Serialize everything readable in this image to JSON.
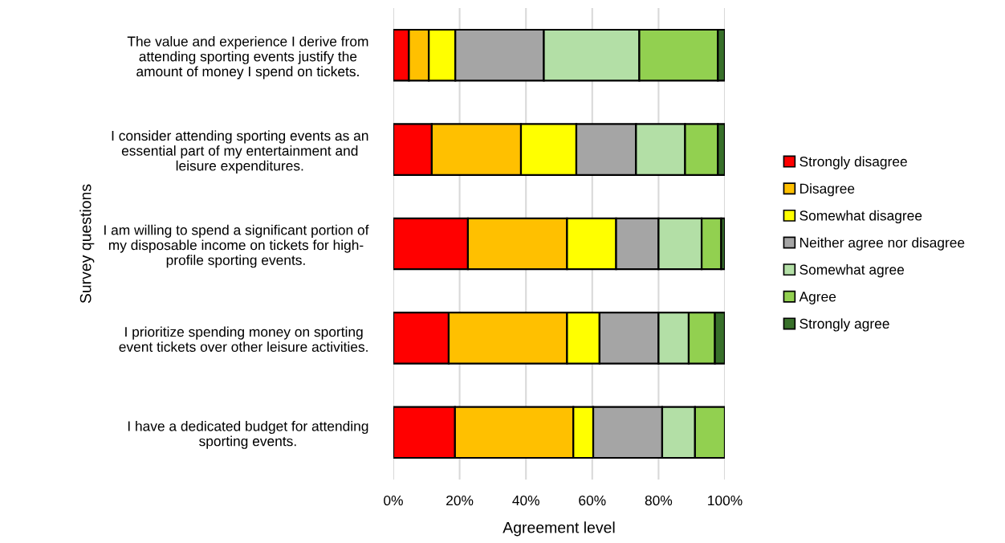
{
  "chart_data": {
    "type": "bar",
    "orientation": "horizontal",
    "stacked": true,
    "xlabel": "Agreement level",
    "ylabel": "Survey questions",
    "categories": [
      "The value and experience I derive from\nattending sporting events justify the\namount of money I spend on tickets.",
      "I consider attending sporting events as an\nessential part of my entertainment and\nleisure expenditures.",
      "I am willing to spend a significant portion of\nmy disposable income on tickets for high-\nprofile sporting events.",
      "I prioritize spending money on sporting\nevent tickets over other leisure activities.",
      "I have a dedicated budget for attending\nsporting events."
    ],
    "series": [
      {
        "name": "Strongly disagree",
        "color": "#ff0000",
        "values": [
          4.7,
          11.6,
          22.5,
          16.7,
          18.6
        ]
      },
      {
        "name": "Disagree",
        "color": "#ffc000",
        "values": [
          6.0,
          26.9,
          29.9,
          35.7,
          35.7
        ]
      },
      {
        "name": "Somewhat disagree",
        "color": "#ffff00",
        "values": [
          8.0,
          16.7,
          14.8,
          9.8,
          6.0
        ]
      },
      {
        "name": "Neither agree nor disagree",
        "color": "#a5a5a5",
        "values": [
          26.7,
          18.0,
          12.8,
          17.8,
          20.8
        ]
      },
      {
        "name": "Somewhat agree",
        "color": "#b3dfa6",
        "values": [
          28.8,
          14.8,
          13.0,
          9.1,
          9.9
        ]
      },
      {
        "name": "Agree",
        "color": "#92d050",
        "values": [
          23.7,
          9.9,
          5.9,
          7.9,
          9.0
        ]
      },
      {
        "name": "Strongly agree",
        "color": "#38702a",
        "values": [
          2.1,
          2.1,
          1.1,
          3.0,
          0
        ]
      }
    ],
    "xlim": [
      0,
      100
    ],
    "xticks": [
      {
        "value": 0,
        "label": "0%"
      },
      {
        "value": 20,
        "label": "20%"
      },
      {
        "value": 40,
        "label": "40%"
      },
      {
        "value": 60,
        "label": "60%"
      },
      {
        "value": 80,
        "label": "80%"
      },
      {
        "value": 100,
        "label": "100%"
      }
    ],
    "grid": "x",
    "legend": "right"
  }
}
